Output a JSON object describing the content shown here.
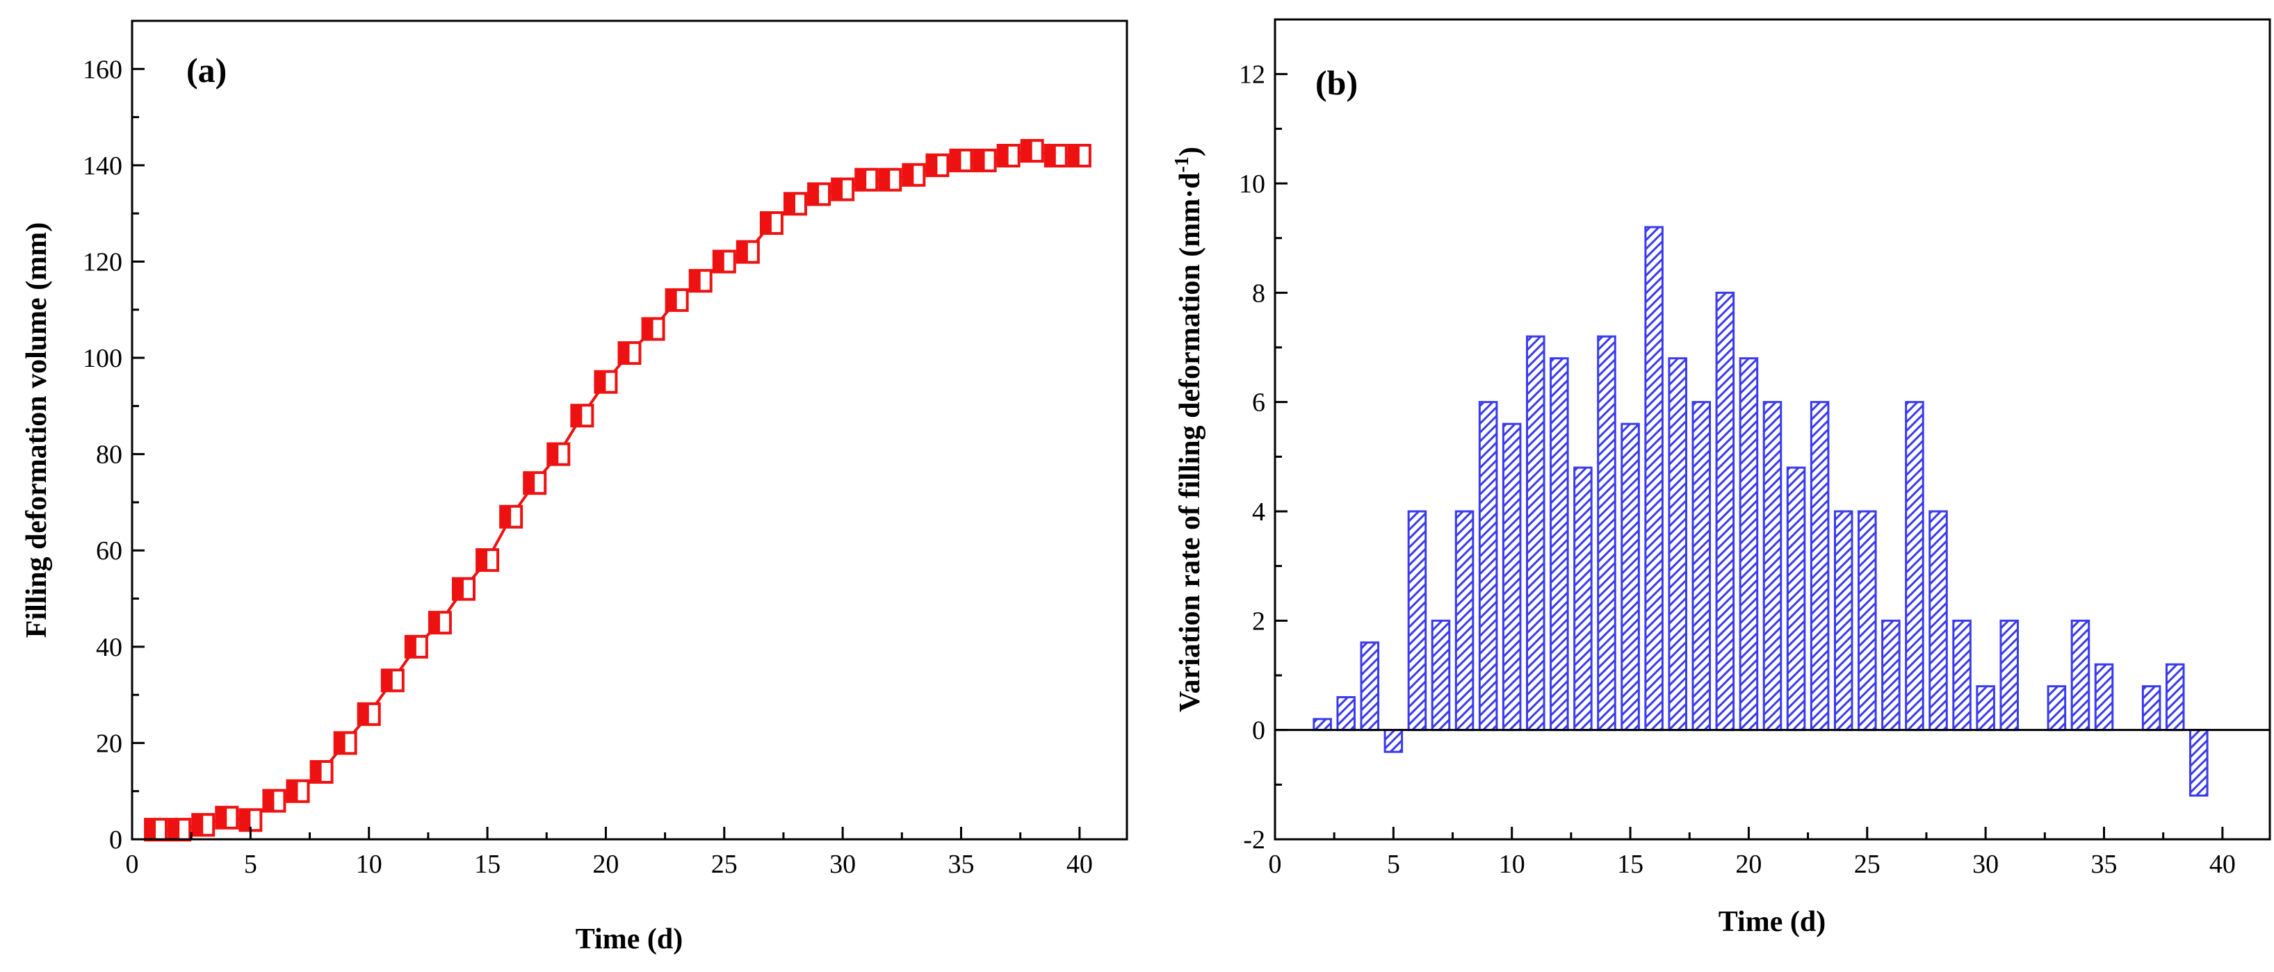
{
  "chart_data": [
    {
      "type": "line",
      "panel_label": "(a)",
      "xlabel": "Time (d)",
      "ylabel": "Filling deformation volume (mm)",
      "xlim": [
        0,
        42
      ],
      "ylim": [
        0,
        170
      ],
      "xticks": [
        "0",
        "5",
        "10",
        "15",
        "20",
        "25",
        "30",
        "35",
        "40"
      ],
      "yticks": [
        "0",
        "20",
        "40",
        "60",
        "80",
        "100",
        "120",
        "140",
        "160"
      ],
      "series": [
        {
          "name": "Filling deformation volume",
          "color": "#ee1111",
          "marker": "half-filled-square",
          "x": [
            1,
            2,
            3,
            4,
            5,
            6,
            7,
            8,
            9,
            10,
            11,
            12,
            13,
            14,
            15,
            16,
            17,
            18,
            19,
            20,
            21,
            22,
            23,
            24,
            25,
            26,
            27,
            28,
            29,
            30,
            31,
            32,
            33,
            34,
            35,
            36,
            37,
            38,
            39,
            40
          ],
          "y": [
            2,
            2,
            3,
            4.5,
            4,
            8,
            10,
            14,
            20,
            26,
            33,
            40,
            45,
            52,
            58,
            67,
            74,
            80,
            88,
            95,
            101,
            106,
            112,
            116,
            120,
            122,
            128,
            132,
            134,
            135,
            137,
            137,
            138,
            140,
            141,
            141,
            142,
            143,
            142,
            142
          ]
        }
      ]
    },
    {
      "type": "bar",
      "panel_label": "(b)",
      "xlabel": "Time (d)",
      "ylabel": "Variation rate of filling deformation",
      "ylabel_unit": "(mm·d",
      "ylabel_unit_sup": "-1",
      "ylabel_unit_close": ")",
      "xlim": [
        0,
        42
      ],
      "ylim": [
        -2,
        13
      ],
      "xticks": [
        "0",
        "5",
        "10",
        "15",
        "20",
        "25",
        "30",
        "35",
        "40"
      ],
      "yticks": [
        "-2",
        "0",
        "2",
        "4",
        "6",
        "8",
        "10",
        "12"
      ],
      "series": [
        {
          "name": "Variation rate",
          "color": "#3a3aee",
          "fill": "hatched",
          "x": [
            2,
            3,
            4,
            5,
            6,
            7,
            8,
            9,
            10,
            11,
            12,
            13,
            14,
            15,
            16,
            17,
            18,
            19,
            20,
            21,
            22,
            23,
            24,
            25,
            26,
            27,
            28,
            29,
            30,
            31,
            32,
            33,
            34,
            35,
            36,
            37,
            38,
            39
          ],
          "values": [
            0.2,
            0.6,
            1.6,
            -0.4,
            4,
            2,
            4,
            6,
            5.6,
            7.2,
            6.8,
            4.8,
            7.2,
            5.6,
            9.2,
            6.8,
            6,
            8,
            6.8,
            6,
            4.8,
            6,
            4,
            4,
            2,
            6,
            4,
            2,
            0.8,
            2,
            0,
            0.8,
            2,
            1.2,
            0,
            0.8,
            1.2,
            -1.2
          ]
        }
      ]
    }
  ]
}
